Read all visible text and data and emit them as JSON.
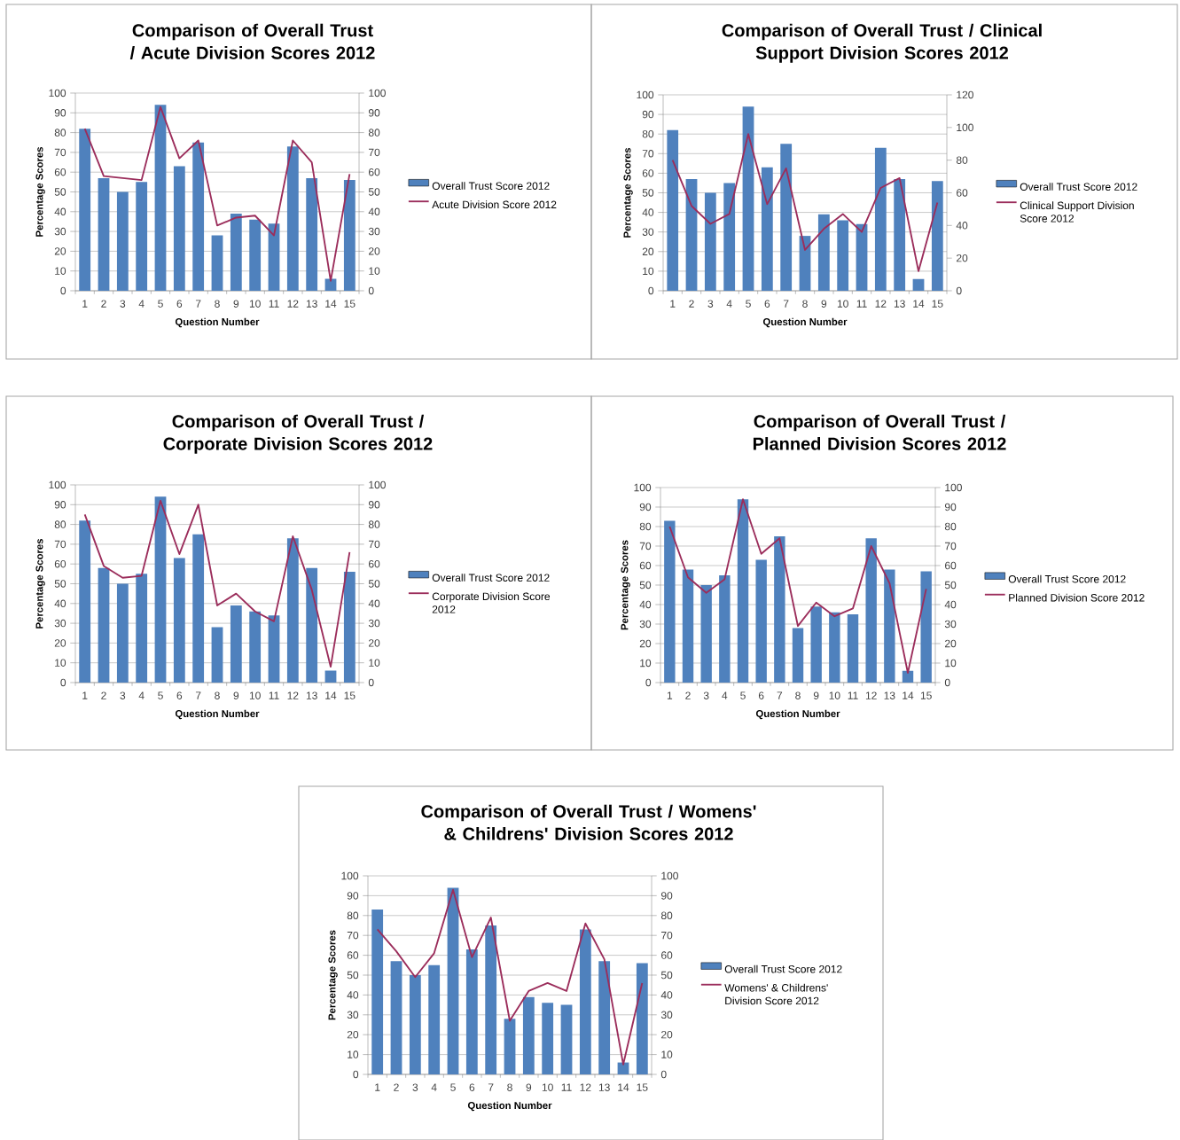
{
  "chart_data": [
    {
      "type": "bar",
      "title": "Comparison of Overall Trust / Acute Division Scores 2012",
      "xlabel": "Question Number",
      "ylabel": "Percentage Scores",
      "categories": [
        "1",
        "2",
        "3",
        "4",
        "5",
        "6",
        "7",
        "8",
        "9",
        "10",
        "11",
        "12",
        "13",
        "14",
        "15"
      ],
      "ylim": [
        0,
        100
      ],
      "yticks": [
        0,
        10,
        20,
        30,
        40,
        50,
        60,
        70,
        80,
        90,
        100
      ],
      "y2lim": [
        0,
        100
      ],
      "y2ticks": [
        0,
        10,
        20,
        30,
        40,
        50,
        60,
        70,
        80,
        90,
        100
      ],
      "grid": "y",
      "legend": "right",
      "series": [
        {
          "name": "Overall Trust Score 2012",
          "color": "#4f81bd",
          "values": [
            82,
            57,
            50,
            55,
            94,
            63,
            75,
            28,
            39,
            36,
            34,
            73,
            57,
            6,
            56
          ]
        },
        {
          "name": "Acute Division Score 2012",
          "type": "line",
          "axis": "y2",
          "color": "#9b2d5b",
          "values": [
            82,
            58,
            57,
            56,
            93,
            67,
            76,
            33,
            37,
            38,
            28,
            76,
            65,
            5,
            59
          ]
        }
      ]
    },
    {
      "type": "bar",
      "title": "Comparison of Overall Trust / Clinical Support Division Scores 2012",
      "xlabel": "Question Number",
      "ylabel": "Percentage Scores",
      "categories": [
        "1",
        "2",
        "3",
        "4",
        "5",
        "6",
        "7",
        "8",
        "9",
        "10",
        "11",
        "12",
        "13",
        "14",
        "15"
      ],
      "ylim": [
        0,
        100
      ],
      "yticks": [
        0,
        10,
        20,
        30,
        40,
        50,
        60,
        70,
        80,
        90,
        100
      ],
      "y2lim": [
        0,
        120
      ],
      "y2ticks": [
        0,
        20,
        40,
        60,
        80,
        100,
        120
      ],
      "grid": "y",
      "legend": "right",
      "series": [
        {
          "name": "Overall Trust Score 2012",
          "color": "#4f81bd",
          "values": [
            82,
            57,
            50,
            55,
            94,
            63,
            75,
            28,
            39,
            36,
            34,
            73,
            57,
            6,
            56
          ]
        },
        {
          "name": "Clinical Support Division Score 2012",
          "type": "line",
          "axis": "y2",
          "color": "#9b2d5b",
          "values": [
            80,
            52,
            41,
            47,
            96,
            53,
            75,
            25,
            38,
            47,
            36,
            63,
            69,
            12,
            54
          ]
        }
      ]
    },
    {
      "type": "bar",
      "title": "Comparison of Overall Trust / Corporate Division Scores 2012",
      "xlabel": "Question Number",
      "ylabel": "Percentage Scores",
      "categories": [
        "1",
        "2",
        "3",
        "4",
        "5",
        "6",
        "7",
        "8",
        "9",
        "10",
        "11",
        "12",
        "13",
        "14",
        "15"
      ],
      "ylim": [
        0,
        100
      ],
      "yticks": [
        0,
        10,
        20,
        30,
        40,
        50,
        60,
        70,
        80,
        90,
        100
      ],
      "y2lim": [
        0,
        100
      ],
      "y2ticks": [
        0,
        10,
        20,
        30,
        40,
        50,
        60,
        70,
        80,
        90,
        100
      ],
      "grid": "y",
      "legend": "right",
      "series": [
        {
          "name": "Overall Trust Score 2012",
          "color": "#4f81bd",
          "values": [
            82,
            58,
            50,
            55,
            94,
            63,
            75,
            28,
            39,
            36,
            34,
            73,
            58,
            6,
            56
          ]
        },
        {
          "name": "Corporate Division Score 2012",
          "type": "line",
          "axis": "y2",
          "color": "#9b2d5b",
          "values": [
            85,
            59,
            53,
            54,
            92,
            65,
            90,
            39,
            45,
            36,
            31,
            74,
            47,
            8,
            66
          ]
        }
      ]
    },
    {
      "type": "bar",
      "title": "Comparison of Overall Trust / Planned Division Scores 2012",
      "xlabel": "Question Number",
      "ylabel": "Percentage Scores",
      "categories": [
        "1",
        "2",
        "3",
        "4",
        "5",
        "6",
        "7",
        "8",
        "9",
        "10",
        "11",
        "12",
        "13",
        "14",
        "15"
      ],
      "ylim": [
        0,
        100
      ],
      "yticks": [
        0,
        10,
        20,
        30,
        40,
        50,
        60,
        70,
        80,
        90,
        100
      ],
      "y2lim": [
        0,
        100
      ],
      "y2ticks": [
        0,
        10,
        20,
        30,
        40,
        50,
        60,
        70,
        80,
        90,
        100
      ],
      "grid": "y",
      "legend": "right",
      "series": [
        {
          "name": "Overall Trust Score 2012",
          "color": "#4f81bd",
          "values": [
            83,
            58,
            50,
            55,
            94,
            63,
            75,
            28,
            39,
            36,
            35,
            74,
            58,
            6,
            57
          ]
        },
        {
          "name": "Planned Division Score 2012",
          "type": "line",
          "axis": "y2",
          "color": "#9b2d5b",
          "values": [
            80,
            54,
            46,
            53,
            94,
            66,
            74,
            29,
            41,
            34,
            38,
            70,
            51,
            5,
            48
          ]
        }
      ]
    },
    {
      "type": "bar",
      "title": "Comparison of Overall Trust / Womens' & Childrens' Division Scores 2012",
      "xlabel": "Question Number",
      "ylabel": "Percentage Scores",
      "categories": [
        "1",
        "2",
        "3",
        "4",
        "5",
        "6",
        "7",
        "8",
        "9",
        "10",
        "11",
        "12",
        "13",
        "14",
        "15"
      ],
      "ylim": [
        0,
        100
      ],
      "yticks": [
        0,
        10,
        20,
        30,
        40,
        50,
        60,
        70,
        80,
        90,
        100
      ],
      "y2lim": [
        0,
        100
      ],
      "y2ticks": [
        0,
        10,
        20,
        30,
        40,
        50,
        60,
        70,
        80,
        90,
        100
      ],
      "grid": "y",
      "legend": "right",
      "series": [
        {
          "name": "Overall Trust Score 2012",
          "color": "#4f81bd",
          "values": [
            83,
            57,
            50,
            55,
            94,
            63,
            75,
            28,
            39,
            36,
            35,
            73,
            57,
            6,
            56
          ]
        },
        {
          "name": "Womens' & Childrens' Division Score 2012",
          "type": "line",
          "axis": "y2",
          "color": "#9b2d5b",
          "values": [
            73,
            62,
            49,
            61,
            93,
            59,
            79,
            27,
            42,
            46,
            42,
            76,
            58,
            5,
            46
          ]
        }
      ]
    }
  ]
}
